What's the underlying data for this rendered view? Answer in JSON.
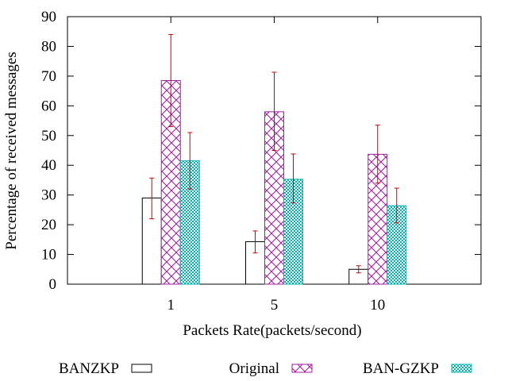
{
  "chart_data": {
    "type": "bar",
    "categories": [
      "1",
      "5",
      "10"
    ],
    "xlabel": "Packets Rate(packets/second)",
    "ylabel": "Percentage of received messages",
    "ylim": [
      0,
      90
    ],
    "yticks": [
      "0",
      "10",
      "20",
      "30",
      "40",
      "50",
      "60",
      "70",
      "80",
      "90"
    ],
    "grid": false,
    "legend_placement": "bottom",
    "error_bar_color": "#cc0000",
    "series": [
      {
        "name": "BANZKP",
        "fill": "white",
        "color": "#000000",
        "values": [
          29,
          14.3,
          5
        ],
        "err_low": [
          22,
          10.5,
          3.8
        ],
        "err_high": [
          35.7,
          17.9,
          6.2
        ]
      },
      {
        "name": "Original",
        "fill": "crosshatch",
        "color": "#a020a0",
        "values": [
          68.5,
          58,
          43.7
        ],
        "err_low": [
          53,
          45,
          34
        ],
        "err_high": [
          84,
          71.3,
          53.5
        ]
      },
      {
        "name": "BAN-GZKP",
        "fill": "dots",
        "color": "#00b2b2",
        "values": [
          41.5,
          35.3,
          26.4
        ],
        "err_low": [
          32,
          27.3,
          20.6
        ],
        "err_high": [
          51,
          43.8,
          32.3
        ]
      }
    ]
  }
}
